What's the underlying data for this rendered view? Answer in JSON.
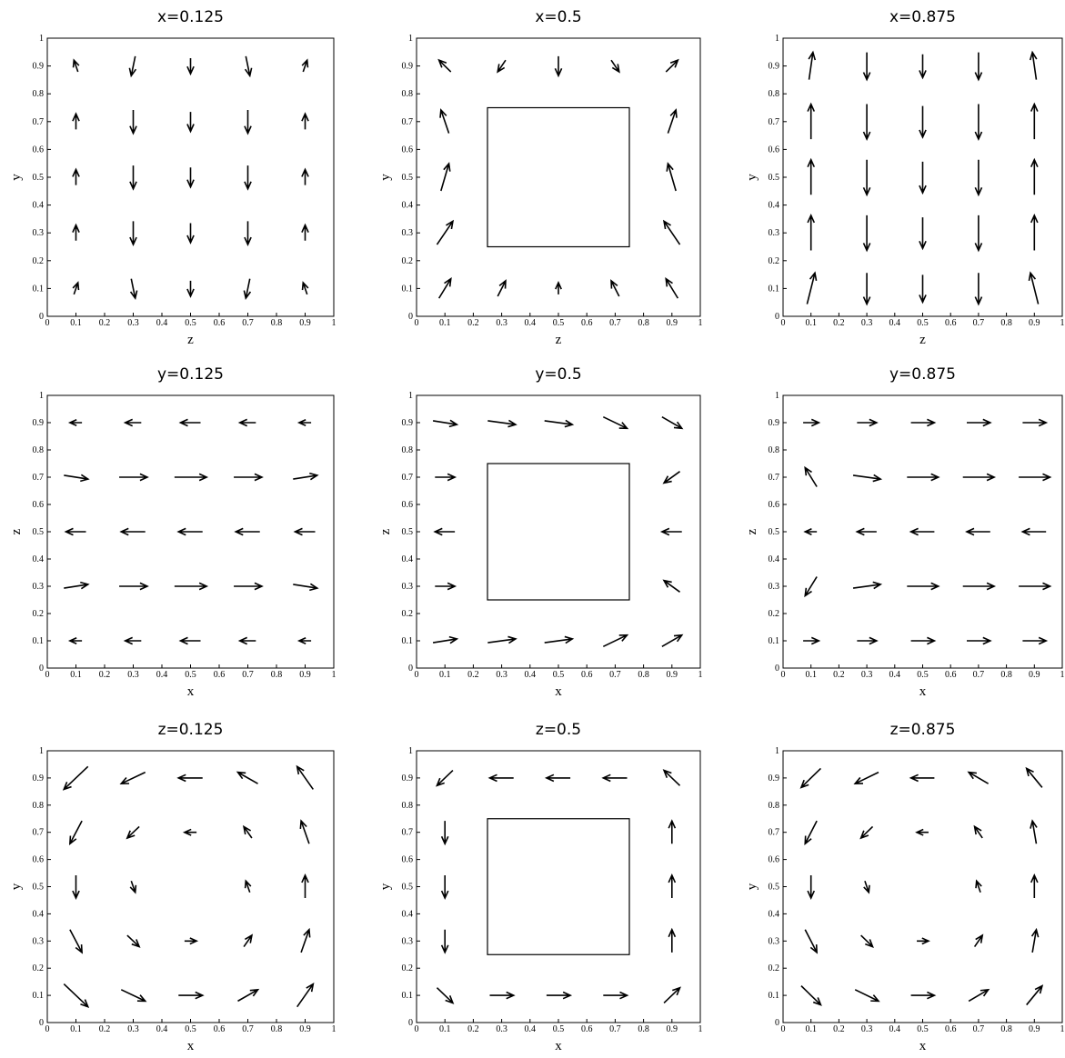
{
  "chart_data": [
    {
      "type": "quiver",
      "title": "x=0.125",
      "xlabel": "z",
      "ylabel": "y",
      "xlim": [
        0,
        1
      ],
      "ylim": [
        0,
        1
      ],
      "xticks": [
        0,
        0.1,
        0.2,
        0.3,
        0.4,
        0.5,
        0.6,
        0.7,
        0.8,
        0.9,
        1
      ],
      "yticks": [
        0,
        0.1,
        0.2,
        0.3,
        0.4,
        0.5,
        0.6,
        0.7,
        0.8,
        0.9,
        1
      ],
      "x": [
        0.1,
        0.3,
        0.5,
        0.7,
        0.9
      ],
      "y": [
        0.1,
        0.3,
        0.5,
        0.7,
        0.9
      ],
      "u": [
        [
          0.1,
          0.1,
          0,
          -0.1,
          -0.1
        ],
        [
          0,
          0,
          0,
          0,
          0
        ],
        [
          0,
          0,
          0,
          0,
          0
        ],
        [
          0,
          0,
          0,
          0,
          0
        ],
        [
          -0.1,
          -0.1,
          0,
          0.1,
          0.1
        ]
      ],
      "v": [
        [
          0.3,
          -0.5,
          -0.4,
          -0.5,
          0.3
        ],
        [
          0.4,
          -0.6,
          -0.5,
          -0.6,
          0.4
        ],
        [
          0.4,
          -0.6,
          -0.5,
          -0.6,
          0.4
        ],
        [
          0.4,
          -0.6,
          -0.5,
          -0.6,
          0.4
        ],
        [
          0.3,
          -0.5,
          -0.4,
          -0.5,
          0.3
        ]
      ]
    },
    {
      "type": "quiver",
      "title": "x=0.5",
      "xlabel": "z",
      "ylabel": "y",
      "xlim": [
        0,
        1
      ],
      "ylim": [
        0,
        1
      ],
      "xticks": [
        0,
        0.1,
        0.2,
        0.3,
        0.4,
        0.5,
        0.6,
        0.7,
        0.8,
        0.9,
        1
      ],
      "yticks": [
        0,
        0.1,
        0.2,
        0.3,
        0.4,
        0.5,
        0.6,
        0.7,
        0.8,
        0.9,
        1
      ],
      "obstacle": {
        "x": [
          0.25,
          0.75
        ],
        "y": [
          0.25,
          0.75
        ]
      },
      "x": [
        0.1,
        0.3,
        0.5,
        0.7,
        0.9
      ],
      "y": [
        0.1,
        0.3,
        0.5,
        0.7,
        0.9
      ],
      "u": [
        [
          0.3,
          0.2,
          0,
          -0.2,
          -0.3
        ],
        [
          0.4,
          null,
          null,
          null,
          -0.4
        ],
        [
          0.2,
          null,
          null,
          null,
          -0.2
        ],
        [
          -0.2,
          null,
          null,
          null,
          0.2
        ],
        [
          -0.3,
          -0.2,
          0,
          0.2,
          0.3
        ]
      ],
      "v": [
        [
          0.5,
          0.4,
          0.3,
          0.4,
          0.5
        ],
        [
          0.6,
          null,
          null,
          null,
          0.6
        ],
        [
          0.7,
          null,
          null,
          null,
          0.7
        ],
        [
          0.6,
          null,
          null,
          null,
          0.6
        ],
        [
          0.3,
          -0.3,
          -0.5,
          -0.3,
          0.3
        ]
      ]
    },
    {
      "type": "quiver",
      "title": "x=0.875",
      "xlabel": "z",
      "ylabel": "y",
      "xlim": [
        0,
        1
      ],
      "ylim": [
        0,
        1
      ],
      "xticks": [
        0,
        0.1,
        0.2,
        0.3,
        0.4,
        0.5,
        0.6,
        0.7,
        0.8,
        0.9,
        1
      ],
      "yticks": [
        0,
        0.1,
        0.2,
        0.3,
        0.4,
        0.5,
        0.6,
        0.7,
        0.8,
        0.9,
        1
      ],
      "x": [
        0.1,
        0.3,
        0.5,
        0.7,
        0.9
      ],
      "y": [
        0.1,
        0.3,
        0.5,
        0.7,
        0.9
      ],
      "u": [
        [
          0.2,
          0,
          0,
          0,
          -0.2
        ],
        [
          0,
          0,
          0,
          0,
          0
        ],
        [
          0,
          0,
          0,
          0,
          0
        ],
        [
          0,
          0,
          0,
          0,
          0
        ],
        [
          0.1,
          0,
          0,
          0,
          -0.1
        ]
      ],
      "v": [
        [
          0.8,
          -0.8,
          -0.7,
          -0.8,
          0.8
        ],
        [
          0.9,
          -0.9,
          -0.8,
          -0.9,
          0.9
        ],
        [
          0.9,
          -0.9,
          -0.8,
          -0.9,
          0.9
        ],
        [
          0.9,
          -0.9,
          -0.8,
          -0.9,
          0.9
        ],
        [
          0.7,
          -0.7,
          -0.6,
          -0.7,
          0.7
        ]
      ]
    },
    {
      "type": "quiver",
      "title": "y=0.125",
      "xlabel": "x",
      "ylabel": "z",
      "xlim": [
        0,
        1
      ],
      "ylim": [
        0,
        1
      ],
      "xticks": [
        0,
        0.1,
        0.2,
        0.3,
        0.4,
        0.5,
        0.6,
        0.7,
        0.8,
        0.9,
        1
      ],
      "yticks": [
        0,
        0.1,
        0.2,
        0.3,
        0.4,
        0.5,
        0.6,
        0.7,
        0.8,
        0.9,
        1
      ],
      "x": [
        0.1,
        0.3,
        0.5,
        0.7,
        0.9
      ],
      "y": [
        0.1,
        0.3,
        0.5,
        0.7,
        0.9
      ],
      "u": [
        [
          -0.3,
          -0.4,
          -0.5,
          -0.4,
          -0.3
        ],
        [
          0.6,
          0.7,
          0.8,
          0.7,
          0.6
        ],
        [
          -0.5,
          -0.6,
          -0.6,
          -0.6,
          -0.5
        ],
        [
          0.6,
          0.7,
          0.8,
          0.7,
          0.6
        ],
        [
          -0.3,
          -0.4,
          -0.5,
          -0.4,
          -0.3
        ]
      ],
      "v": [
        [
          0,
          0,
          0,
          0,
          0
        ],
        [
          0.1,
          0,
          0,
          0,
          -0.1
        ],
        [
          0,
          0,
          0,
          0,
          0
        ],
        [
          -0.1,
          0,
          0,
          0,
          0.1
        ],
        [
          0,
          0,
          0,
          0,
          0
        ]
      ]
    },
    {
      "type": "quiver",
      "title": "y=0.5",
      "xlabel": "x",
      "ylabel": "z",
      "xlim": [
        0,
        1
      ],
      "ylim": [
        0,
        1
      ],
      "xticks": [
        0,
        0.1,
        0.2,
        0.3,
        0.4,
        0.5,
        0.6,
        0.7,
        0.8,
        0.9,
        1
      ],
      "yticks": [
        0,
        0.1,
        0.2,
        0.3,
        0.4,
        0.5,
        0.6,
        0.7,
        0.8,
        0.9,
        1
      ],
      "obstacle": {
        "x": [
          0.25,
          0.75
        ],
        "y": [
          0.25,
          0.75
        ]
      },
      "x": [
        0.1,
        0.3,
        0.5,
        0.7,
        0.9
      ],
      "y": [
        0.1,
        0.3,
        0.5,
        0.7,
        0.9
      ],
      "u": [
        [
          0.6,
          0.7,
          0.7,
          0.6,
          0.5
        ],
        [
          0.5,
          null,
          null,
          null,
          -0.4
        ],
        [
          -0.5,
          null,
          null,
          null,
          -0.5
        ],
        [
          0.5,
          null,
          null,
          null,
          -0.4
        ],
        [
          0.6,
          0.7,
          0.7,
          0.6,
          0.5
        ]
      ],
      "v": [
        [
          0.1,
          0.1,
          0.1,
          0.3,
          0.3
        ],
        [
          0,
          null,
          null,
          null,
          0.3
        ],
        [
          0,
          null,
          null,
          null,
          0
        ],
        [
          0,
          null,
          null,
          null,
          -0.3
        ],
        [
          -0.1,
          -0.1,
          -0.1,
          -0.3,
          -0.3
        ]
      ]
    },
    {
      "type": "quiver",
      "title": "y=0.875",
      "xlabel": "x",
      "ylabel": "z",
      "xlim": [
        0,
        1
      ],
      "ylim": [
        0,
        1
      ],
      "xticks": [
        0,
        0.1,
        0.2,
        0.3,
        0.4,
        0.5,
        0.6,
        0.7,
        0.8,
        0.9,
        1
      ],
      "yticks": [
        0,
        0.1,
        0.2,
        0.3,
        0.4,
        0.5,
        0.6,
        0.7,
        0.8,
        0.9,
        1
      ],
      "x": [
        0.1,
        0.3,
        0.5,
        0.7,
        0.9
      ],
      "y": [
        0.1,
        0.3,
        0.5,
        0.7,
        0.9
      ],
      "u": [
        [
          0.4,
          0.5,
          0.6,
          0.6,
          0.6
        ],
        [
          -0.3,
          0.7,
          0.8,
          0.8,
          0.8
        ],
        [
          -0.3,
          -0.5,
          -0.6,
          -0.6,
          -0.6
        ],
        [
          -0.3,
          0.7,
          0.8,
          0.8,
          0.8
        ],
        [
          0.4,
          0.5,
          0.6,
          0.6,
          0.6
        ]
      ],
      "v": [
        [
          0,
          0,
          0,
          0,
          0
        ],
        [
          -0.5,
          0.1,
          0,
          0,
          0
        ],
        [
          0,
          0,
          0,
          0,
          0
        ],
        [
          0.5,
          -0.1,
          0,
          0,
          0
        ],
        [
          0,
          0,
          0,
          0,
          0
        ]
      ]
    },
    {
      "type": "quiver",
      "title": "z=0.125",
      "xlabel": "x",
      "ylabel": "y",
      "xlim": [
        0,
        1
      ],
      "ylim": [
        0,
        1
      ],
      "xticks": [
        0,
        0.1,
        0.2,
        0.3,
        0.4,
        0.5,
        0.6,
        0.7,
        0.8,
        0.9,
        1
      ],
      "yticks": [
        0,
        0.1,
        0.2,
        0.3,
        0.4,
        0.5,
        0.6,
        0.7,
        0.8,
        0.9,
        1
      ],
      "x": [
        0.1,
        0.3,
        0.5,
        0.7,
        0.9
      ],
      "y": [
        0.1,
        0.3,
        0.5,
        0.7,
        0.9
      ],
      "u": [
        [
          0.6,
          0.6,
          0.6,
          0.5,
          0.4
        ],
        [
          0.3,
          0.3,
          0.3,
          0.2,
          0.2
        ],
        [
          0,
          0.1,
          0,
          -0.1,
          0
        ],
        [
          -0.3,
          -0.3,
          -0.3,
          -0.2,
          -0.2
        ],
        [
          -0.6,
          -0.6,
          -0.6,
          -0.5,
          -0.4
        ]
      ],
      "v": [
        [
          -0.6,
          -0.3,
          0,
          0.3,
          0.6
        ],
        [
          -0.6,
          -0.3,
          0,
          0.3,
          0.6
        ],
        [
          -0.6,
          -0.3,
          0,
          0.3,
          0.6
        ],
        [
          -0.6,
          -0.3,
          0,
          0.3,
          0.6
        ],
        [
          -0.6,
          -0.3,
          0,
          0.3,
          0.6
        ]
      ]
    },
    {
      "type": "quiver",
      "title": "z=0.5",
      "xlabel": "x",
      "ylabel": "y",
      "xlim": [
        0,
        1
      ],
      "ylim": [
        0,
        1
      ],
      "xticks": [
        0,
        0.1,
        0.2,
        0.3,
        0.4,
        0.5,
        0.6,
        0.7,
        0.8,
        0.9,
        1
      ],
      "yticks": [
        0,
        0.1,
        0.2,
        0.3,
        0.4,
        0.5,
        0.6,
        0.7,
        0.8,
        0.9,
        1
      ],
      "obstacle": {
        "x": [
          0.25,
          0.75
        ],
        "y": [
          0.25,
          0.75
        ]
      },
      "x": [
        0.1,
        0.3,
        0.5,
        0.7,
        0.9
      ],
      "y": [
        0.1,
        0.3,
        0.5,
        0.7,
        0.9
      ],
      "u": [
        [
          0.4,
          0.6,
          0.6,
          0.6,
          0.4
        ],
        [
          0,
          null,
          null,
          null,
          0
        ],
        [
          0,
          null,
          null,
          null,
          0
        ],
        [
          0,
          null,
          null,
          null,
          0
        ],
        [
          -0.4,
          -0.6,
          -0.6,
          -0.6,
          -0.4
        ]
      ],
      "v": [
        [
          -0.4,
          0,
          0,
          0,
          0.4
        ],
        [
          -0.6,
          null,
          null,
          null,
          0.6
        ],
        [
          -0.6,
          null,
          null,
          null,
          0.6
        ],
        [
          -0.6,
          null,
          null,
          null,
          0.6
        ],
        [
          -0.4,
          0,
          0,
          0,
          0.4
        ]
      ]
    },
    {
      "type": "quiver",
      "title": "z=0.875",
      "xlabel": "x",
      "ylabel": "y",
      "xlim": [
        0,
        1
      ],
      "ylim": [
        0,
        1
      ],
      "xticks": [
        0,
        0.1,
        0.2,
        0.3,
        0.4,
        0.5,
        0.6,
        0.7,
        0.8,
        0.9,
        1
      ],
      "yticks": [
        0,
        0.1,
        0.2,
        0.3,
        0.4,
        0.5,
        0.6,
        0.7,
        0.8,
        0.9,
        1
      ],
      "x": [
        0.1,
        0.3,
        0.5,
        0.7,
        0.9
      ],
      "y": [
        0.1,
        0.3,
        0.5,
        0.7,
        0.9
      ],
      "u": [
        [
          0.5,
          0.6,
          0.6,
          0.5,
          0.4
        ],
        [
          0.3,
          0.3,
          0.3,
          0.2,
          0.1
        ],
        [
          0,
          0.1,
          0,
          -0.1,
          0
        ],
        [
          -0.3,
          -0.3,
          -0.3,
          -0.2,
          -0.1
        ],
        [
          -0.5,
          -0.6,
          -0.6,
          -0.5,
          -0.4
        ]
      ],
      "v": [
        [
          -0.5,
          -0.3,
          0,
          0.3,
          0.5
        ],
        [
          -0.6,
          -0.3,
          0,
          0.3,
          0.6
        ],
        [
          -0.6,
          -0.3,
          0,
          0.3,
          0.6
        ],
        [
          -0.6,
          -0.3,
          0,
          0.3,
          0.6
        ],
        [
          -0.5,
          -0.3,
          0,
          0.3,
          0.5
        ]
      ]
    }
  ]
}
